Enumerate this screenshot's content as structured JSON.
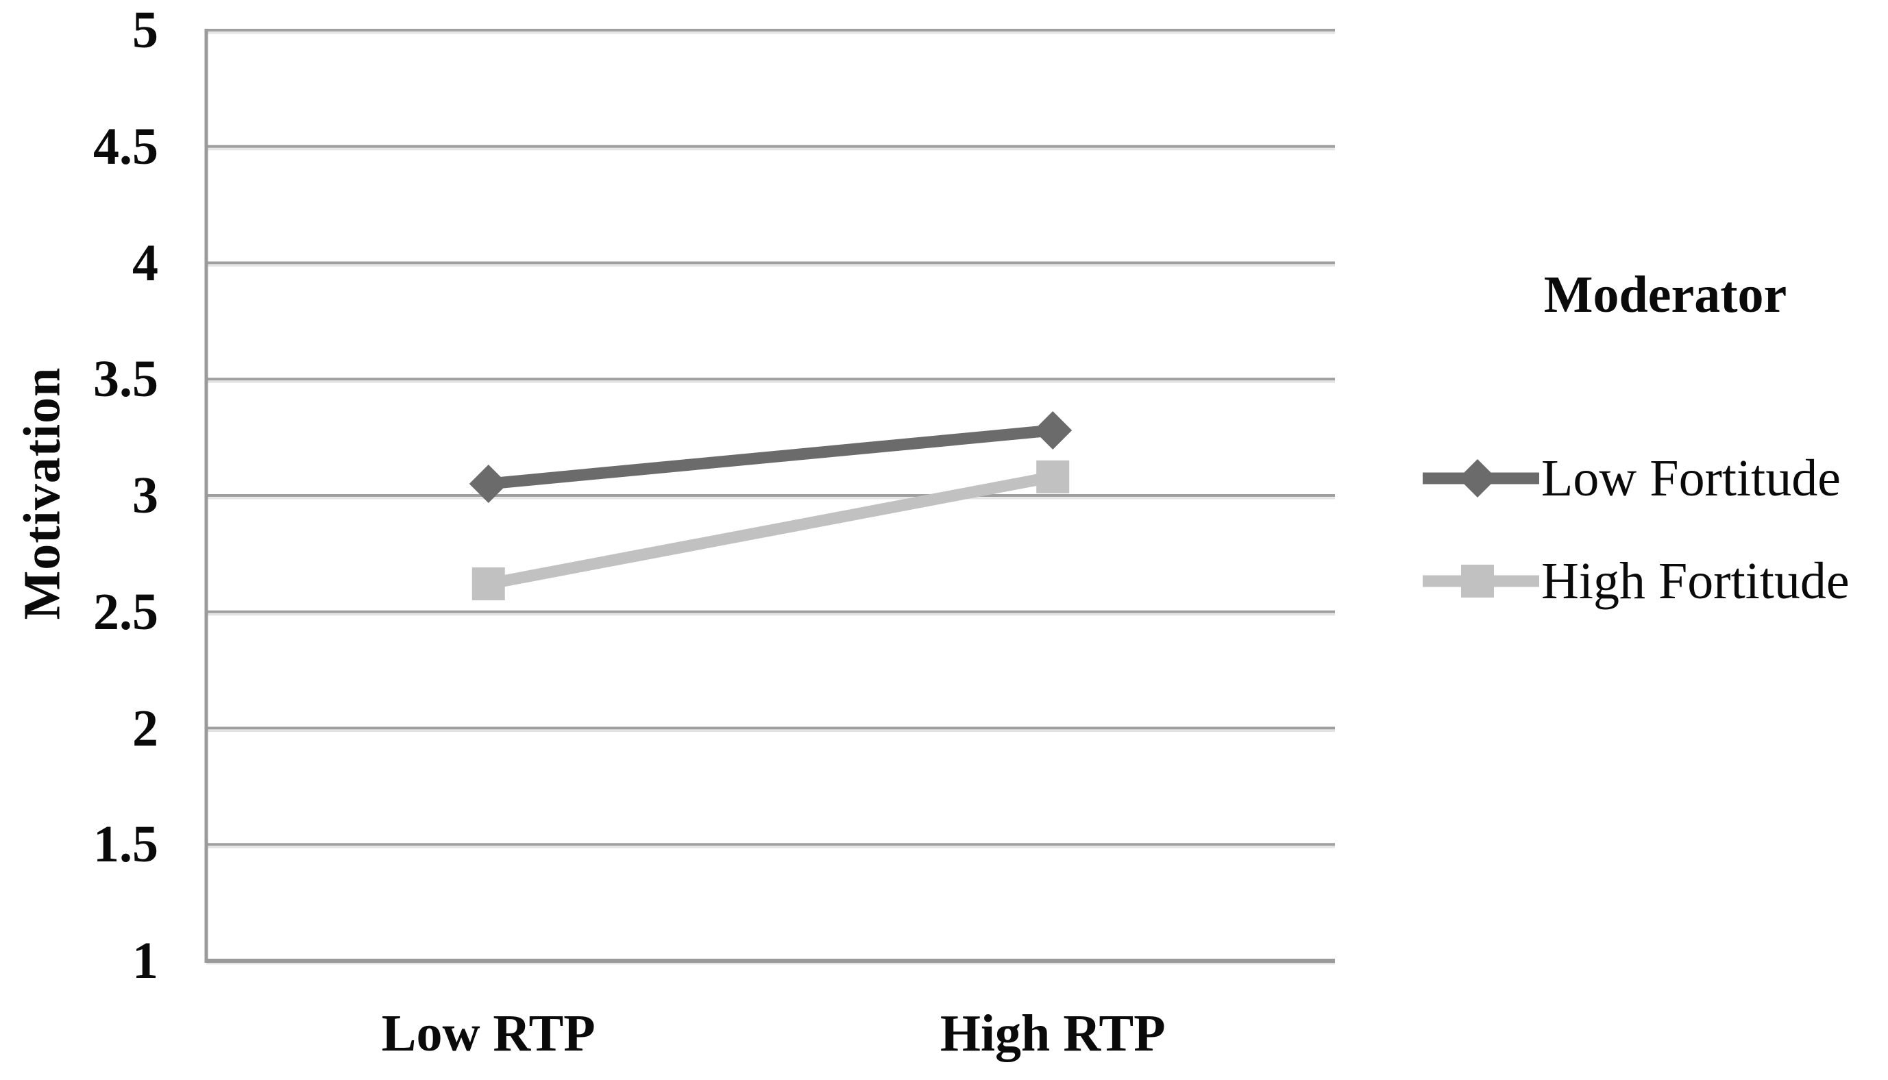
{
  "chart_data": {
    "type": "line",
    "title": "",
    "xlabel": "",
    "ylabel": "Motivation",
    "categories": [
      "Low RTP",
      "High RTP"
    ],
    "series": [
      {
        "name": "Low Fortitude",
        "values": [
          3.05,
          3.28
        ],
        "color": "#6b6b6b",
        "marker": "diamond"
      },
      {
        "name": "High Fortitude",
        "values": [
          2.62,
          3.08
        ],
        "color": "#c1c1c1",
        "marker": "square"
      }
    ],
    "ylim": [
      1,
      5
    ],
    "ytick_step": 0.5,
    "ytick_values": [
      5,
      4.5,
      4,
      3.5,
      3,
      2.5,
      2,
      1.5,
      1
    ],
    "yticks": [
      "5",
      "4.5",
      "4",
      "3.5",
      "3",
      "2.5",
      "2",
      "1.5",
      "1"
    ],
    "grid": true,
    "legend": {
      "title": "Moderator",
      "position": "right"
    },
    "colors": {
      "grid": "#9f9f9f",
      "grid_shadow": "#e4e4e4",
      "axis": "#9a9a9a",
      "text": "#0a0a0a",
      "background": "#ffffff"
    }
  }
}
